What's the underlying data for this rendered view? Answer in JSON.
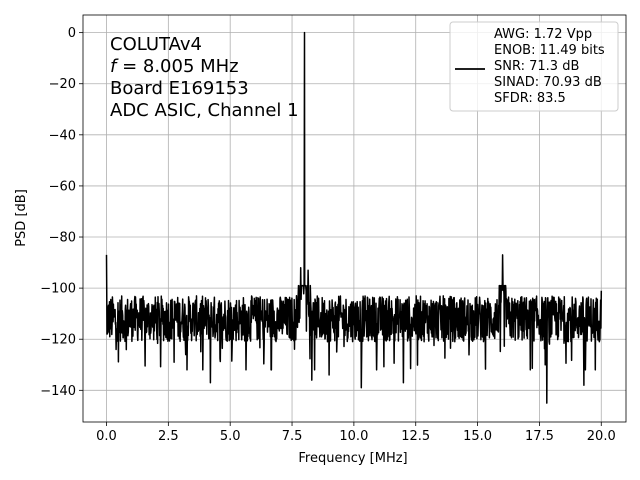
{
  "chart_data": {
    "type": "line",
    "title": "",
    "xlabel": "Frequency [MHz]",
    "ylabel": "PSD [dB]",
    "xlim": [
      -0.95,
      21.0
    ],
    "ylim": [
      -152.4,
      6.9
    ],
    "xticks": [
      0.0,
      2.5,
      5.0,
      7.5,
      10.0,
      12.5,
      15.0,
      17.5,
      20.0
    ],
    "xtick_labels": [
      "0.0",
      "2.5",
      "5.0",
      "7.5",
      "10.0",
      "12.5",
      "15.0",
      "17.5",
      "20.0"
    ],
    "yticks": [
      0,
      -20,
      -40,
      -60,
      -80,
      -100,
      -120,
      -140
    ],
    "ytick_labels": [
      "0",
      "−20",
      "−40",
      "−60",
      "−80",
      "−100",
      "−120",
      "−140"
    ],
    "grid": true,
    "annotation_lines": [
      "COLUTAv4",
      " = 8.005 MHz",
      "Board E169153",
      "ADC ASIC, Channel  1"
    ],
    "annotation_italic_prefix": "f",
    "legend": {
      "placement": "top-right",
      "lines": [
        "AWG: 1.72 Vpp",
        "ENOB: 11.49 bits",
        "SNR: 71.3 dB",
        "SINAD: 70.93 dB",
        "SFDR: 83.5"
      ]
    },
    "series": [
      {
        "color": "#000000",
        "noise_floor_db": -112,
        "noise_spread_db": [
          -126,
          -99
        ],
        "features": [
          {
            "x": 0.0,
            "y": -87
          },
          {
            "x": 0.02,
            "y": -118
          },
          {
            "x": 8.005,
            "y": 0
          },
          {
            "x": 7.85,
            "y": -92
          },
          {
            "x": 8.15,
            "y": -93
          },
          {
            "x": 16.01,
            "y": -87
          },
          {
            "x": 8.3,
            "y": -136
          },
          {
            "x": 9.0,
            "y": -134
          },
          {
            "x": 10.3,
            "y": -139
          },
          {
            "x": 12.0,
            "y": -137
          },
          {
            "x": 17.8,
            "y": -145
          },
          {
            "x": 4.2,
            "y": -137
          },
          {
            "x": 19.3,
            "y": -138
          },
          {
            "x": 20.0,
            "y": -101
          }
        ]
      }
    ]
  }
}
